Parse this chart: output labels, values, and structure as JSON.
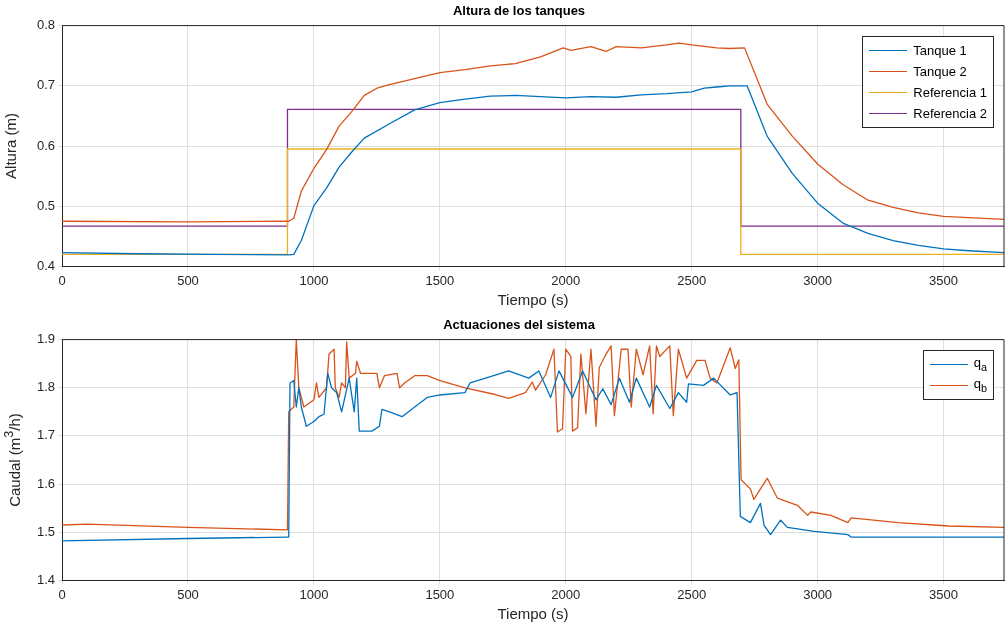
{
  "chart_data": [
    {
      "type": "line",
      "title": "Altura de los tanques",
      "xlabel": "Tiempo (s)",
      "ylabel": "Altura (m)",
      "xlim": [
        0,
        3740
      ],
      "ylim": [
        0.4,
        0.8
      ],
      "xticks": [
        0,
        500,
        1000,
        1500,
        2000,
        2500,
        3000,
        3500
      ],
      "yticks": [
        0.4,
        0.5,
        0.6,
        0.7,
        0.8
      ],
      "grid": true,
      "legend": "top right",
      "series": [
        {
          "name": "Tanque 1",
          "color": "#0072bd",
          "x": [
            0,
            300,
            600,
            900,
            920,
            950,
            1000,
            1050,
            1100,
            1150,
            1200,
            1300,
            1400,
            1500,
            1600,
            1700,
            1800,
            1900,
            2000,
            2100,
            2200,
            2300,
            2400,
            2500,
            2550,
            2600,
            2650,
            2720,
            2800,
            2900,
            3000,
            3100,
            3200,
            3300,
            3400,
            3500,
            3600,
            3740
          ],
          "values": [
            0.423,
            0.421,
            0.42,
            0.419,
            0.42,
            0.443,
            0.501,
            0.53,
            0.565,
            0.59,
            0.613,
            0.637,
            0.66,
            0.672,
            0.678,
            0.683,
            0.684,
            0.682,
            0.68,
            0.682,
            0.681,
            0.685,
            0.687,
            0.69,
            0.696,
            0.698,
            0.7,
            0.7,
            0.616,
            0.554,
            0.505,
            0.472,
            0.455,
            0.443,
            0.435,
            0.429,
            0.426,
            0.423
          ]
        },
        {
          "name": "Tanque 2",
          "color": "#d95319",
          "x": [
            0,
            500,
            900,
            920,
            950,
            1000,
            1050,
            1100,
            1150,
            1200,
            1250,
            1300,
            1400,
            1500,
            1600,
            1700,
            1800,
            1900,
            1990,
            2020,
            2100,
            2160,
            2200,
            2300,
            2400,
            2450,
            2500,
            2600,
            2650,
            2710,
            2800,
            2900,
            3000,
            3100,
            3200,
            3300,
            3400,
            3500,
            3740
          ],
          "values": [
            0.475,
            0.474,
            0.475,
            0.48,
            0.525,
            0.563,
            0.594,
            0.633,
            0.657,
            0.684,
            0.696,
            0.702,
            0.712,
            0.722,
            0.727,
            0.733,
            0.737,
            0.748,
            0.763,
            0.759,
            0.765,
            0.757,
            0.765,
            0.763,
            0.768,
            0.771,
            0.768,
            0.763,
            0.762,
            0.763,
            0.669,
            0.616,
            0.57,
            0.536,
            0.51,
            0.498,
            0.489,
            0.483,
            0.478
          ]
        },
        {
          "name": "Referencia 1",
          "color": "#edb120",
          "x": [
            0,
            895,
            895,
            2695,
            2695,
            3740
          ],
          "values": [
            0.42,
            0.42,
            0.595,
            0.595,
            0.42,
            0.42
          ]
        },
        {
          "name": "Referencia 2",
          "color": "#7e2f8e",
          "x": [
            0,
            895,
            895,
            2695,
            2695,
            3740
          ],
          "values": [
            0.467,
            0.467,
            0.661,
            0.661,
            0.467,
            0.467
          ]
        }
      ]
    },
    {
      "type": "line",
      "title": "Actuaciones del sistema",
      "xlabel": "Tiempo (s)",
      "ylabel": "Caudal (m$^{3}$/h)",
      "xlim": [
        0,
        3740
      ],
      "ylim": [
        1.4,
        1.9
      ],
      "xticks": [
        0,
        500,
        1000,
        1500,
        2000,
        2500,
        3000,
        3500
      ],
      "yticks": [
        1.4,
        1.5,
        1.6,
        1.7,
        1.8,
        1.9
      ],
      "grid": true,
      "legend": "top right",
      "series": [
        {
          "name": "q$_{a}$",
          "color": "#0072bd",
          "x": [
            0,
            500,
            895,
            900,
            905,
            920,
            930,
            940,
            950,
            970,
            1000,
            1020,
            1040,
            1055,
            1070,
            1090,
            1110,
            1140,
            1160,
            1170,
            1180,
            1230,
            1260,
            1270,
            1300,
            1350,
            1400,
            1450,
            1500,
            1600,
            1620,
            1720,
            1773,
            1853,
            1893,
            1940,
            1973,
            2027,
            2067,
            2120,
            2147,
            2180,
            2213,
            2253,
            2280,
            2333,
            2360,
            2413,
            2447,
            2480,
            2487,
            2547,
            2587,
            2653,
            2680,
            2693,
            2733,
            2773,
            2787,
            2813,
            2853,
            2880,
            2987,
            3120,
            3133,
            3740
          ],
          "values": [
            1.482,
            1.487,
            1.49,
            1.49,
            1.81,
            1.815,
            1.76,
            1.8,
            1.76,
            1.72,
            1.73,
            1.74,
            1.745,
            1.83,
            1.8,
            1.79,
            1.75,
            1.82,
            1.75,
            1.82,
            1.71,
            1.71,
            1.72,
            1.755,
            1.75,
            1.74,
            1.76,
            1.78,
            1.785,
            1.79,
            1.81,
            1.826,
            1.835,
            1.82,
            1.835,
            1.78,
            1.835,
            1.78,
            1.835,
            1.775,
            1.798,
            1.765,
            1.82,
            1.77,
            1.82,
            1.76,
            1.805,
            1.757,
            1.79,
            1.77,
            1.808,
            1.805,
            1.82,
            1.785,
            1.79,
            1.533,
            1.52,
            1.56,
            1.515,
            1.495,
            1.525,
            1.51,
            1.502,
            1.495,
            1.49,
            1.49
          ]
        },
        {
          "name": "q$_{b}$",
          "color": "#d95319",
          "x": [
            0,
            100,
            500,
            895,
            900,
            920,
            930,
            940,
            960,
            1000,
            1010,
            1020,
            1050,
            1060,
            1080,
            1085,
            1100,
            1110,
            1125,
            1130,
            1140,
            1165,
            1170,
            1185,
            1250,
            1260,
            1280,
            1330,
            1340,
            1360,
            1400,
            1450,
            1500,
            1600,
            1720,
            1773,
            1840,
            1867,
            1880,
            1920,
            1953,
            1967,
            1987,
            2000,
            2020,
            2027,
            2047,
            2060,
            2080,
            2100,
            2120,
            2133,
            2160,
            2180,
            2193,
            2220,
            2247,
            2260,
            2280,
            2307,
            2333,
            2347,
            2360,
            2373,
            2413,
            2427,
            2447,
            2480,
            2520,
            2553,
            2573,
            2600,
            2653,
            2673,
            2687,
            2696,
            2733,
            2747,
            2773,
            2800,
            2840,
            2920,
            2960,
            2973,
            3053,
            3120,
            3133,
            3320,
            3520,
            3740
          ],
          "values": [
            1.515,
            1.517,
            1.51,
            1.505,
            1.75,
            1.76,
            1.9,
            1.8,
            1.76,
            1.775,
            1.81,
            1.78,
            1.8,
            1.87,
            1.88,
            1.8,
            1.78,
            1.81,
            1.8,
            1.895,
            1.82,
            1.83,
            1.855,
            1.83,
            1.83,
            1.8,
            1.825,
            1.83,
            1.8,
            1.81,
            1.825,
            1.825,
            1.815,
            1.8,
            1.786,
            1.778,
            1.79,
            1.812,
            1.795,
            1.827,
            1.88,
            1.708,
            1.715,
            1.88,
            1.865,
            1.71,
            1.717,
            1.87,
            1.746,
            1.88,
            1.72,
            1.842,
            1.87,
            1.887,
            1.742,
            1.88,
            1.88,
            1.76,
            1.88,
            1.827,
            1.887,
            1.746,
            1.887,
            1.865,
            1.887,
            1.742,
            1.88,
            1.82,
            1.857,
            1.857,
            1.82,
            1.81,
            1.883,
            1.84,
            1.858,
            1.609,
            1.59,
            1.568,
            1.59,
            1.612,
            1.571,
            1.556,
            1.535,
            1.542,
            1.535,
            1.52,
            1.53,
            1.52,
            1.513,
            1.51
          ]
        }
      ]
    }
  ]
}
